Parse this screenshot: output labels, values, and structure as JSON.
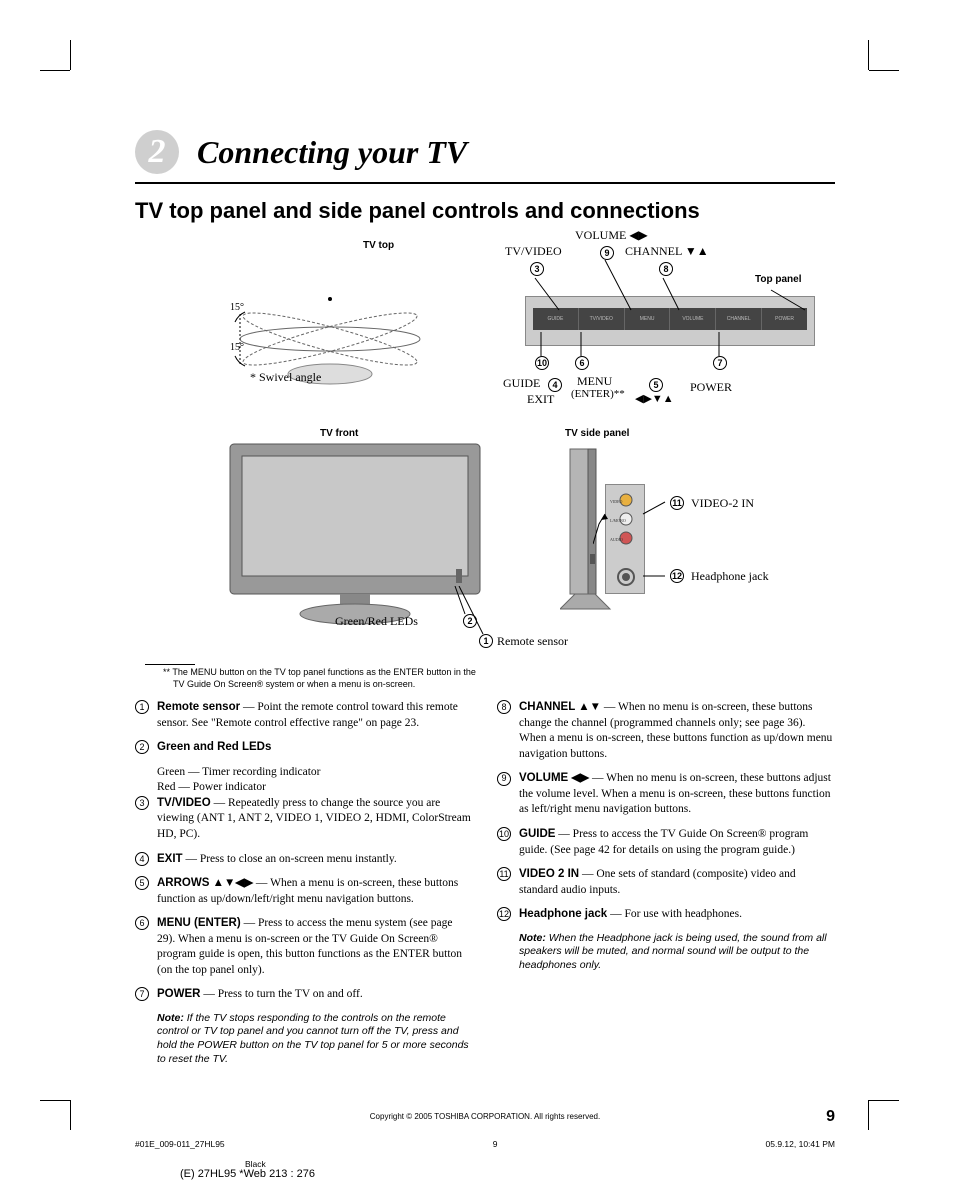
{
  "chapter": {
    "number": "2",
    "title": "Connecting your TV"
  },
  "section_title": "TV top panel and side panel controls and connections",
  "diagram": {
    "tv_top": "TV top",
    "swivel_angle": "* Swivel angle",
    "angle": "15°",
    "tv_front": "TV front",
    "tv_side_panel": "TV side panel",
    "top_panel": "Top panel",
    "tv_video": "TV/VIDEO",
    "volume": "VOLUME ◀▶",
    "channel": "CHANNEL ▼▲",
    "guide": "GUIDE",
    "exit": "EXIT",
    "menu": "MENU",
    "enter": "(ENTER)**",
    "arrows": "◀▶▼▲",
    "power": "POWER",
    "video2in": "VIDEO-2 IN",
    "headphone": "Headphone jack",
    "green_red_leds": "Green/Red LEDs",
    "remote_sensor": "Remote sensor",
    "callouts": {
      "n1": "1",
      "n2": "2",
      "n3": "3",
      "n4": "4",
      "n5": "5",
      "n6": "6",
      "n7": "7",
      "n8": "8",
      "n9": "9",
      "n10": "10",
      "n11": "11",
      "n12": "12"
    },
    "panel_btns": {
      "guide": "GUIDE",
      "tvvideo": "TV/VIDEO",
      "menu": "MENU",
      "volume": "VOLUME",
      "channel": "CHANNEL",
      "power": "POWER"
    }
  },
  "footnote": {
    "marker": "**",
    "line1": "The MENU button on the TV top panel functions as the ENTER button in the",
    "line2": "TV Guide On Screen® system or when a menu is on-screen."
  },
  "items_left": [
    {
      "n": "1",
      "title": "Remote sensor",
      "body": " — Point the remote control toward this remote sensor. See \"Remote control effective range\" on page 23."
    },
    {
      "n": "2",
      "title": "Green and Red LEDs",
      "body": "",
      "subs": [
        "Green — Timer recording indicator",
        "Red — Power indicator"
      ]
    },
    {
      "n": "3",
      "title": "TV/VIDEO",
      "body": " — Repeatedly press to change the source you are viewing (ANT 1, ANT 2, VIDEO 1, VIDEO 2, HDMI, ColorStream HD, PC)."
    },
    {
      "n": "4",
      "title": "EXIT",
      "body": " — Press to close an on-screen menu instantly."
    },
    {
      "n": "5",
      "title": "ARROWS ▲▼◀▶",
      "body": " — When a menu is on-screen, these buttons function as up/down/left/right menu navigation buttons."
    },
    {
      "n": "6",
      "title": "MENU (ENTER)",
      "body": " — Press to access the menu system (see page 29). When a menu is on-screen or the TV Guide On Screen® program guide is open, this button functions as the ENTER button (on the top panel only)."
    },
    {
      "n": "7",
      "title": "POWER",
      "body": " — Press to turn the TV on and off.",
      "note": "If the TV stops responding to the controls on the remote control or TV top panel and you cannot turn off the TV, press and hold the POWER button on the TV top panel for 5 or more seconds to reset the TV."
    }
  ],
  "items_right": [
    {
      "n": "8",
      "title": "CHANNEL ▲▼",
      "body": " — When no menu is on-screen, these buttons change the channel (programmed channels only; see page 36). When a menu is on-screen, these buttons function as up/down menu navigation buttons."
    },
    {
      "n": "9",
      "title": "VOLUME ◀▶",
      "body": " — When no menu is on-screen, these buttons adjust the volume level. When a menu is on-screen, these buttons function as left/right menu navigation buttons."
    },
    {
      "n": "10",
      "title": "GUIDE",
      "body": " — Press to access the TV Guide On Screen® program guide. (See page 42 for details on using the program guide.)"
    },
    {
      "n": "11",
      "title": "VIDEO 2 IN",
      "body": " — One sets of standard (composite) video and standard audio inputs."
    },
    {
      "n": "12",
      "title": "Headphone jack",
      "body": " — For use with headphones.",
      "note": "When the Headphone jack is being used, the sound from all speakers will be muted, and normal sound will be output to the headphones only."
    }
  ],
  "footer": {
    "copyright": "Copyright © 2005 TOSHIBA CORPORATION. All rights reserved.",
    "page_number": "9",
    "slug_left": "#01E_009-011_27HL95",
    "slug_mid": "9",
    "slug_right": "05.9.12, 10:41 PM",
    "black": "Black",
    "bottom_tag": "(E) 27HL95 *Web 213 : 276"
  },
  "note_label": "Note:"
}
